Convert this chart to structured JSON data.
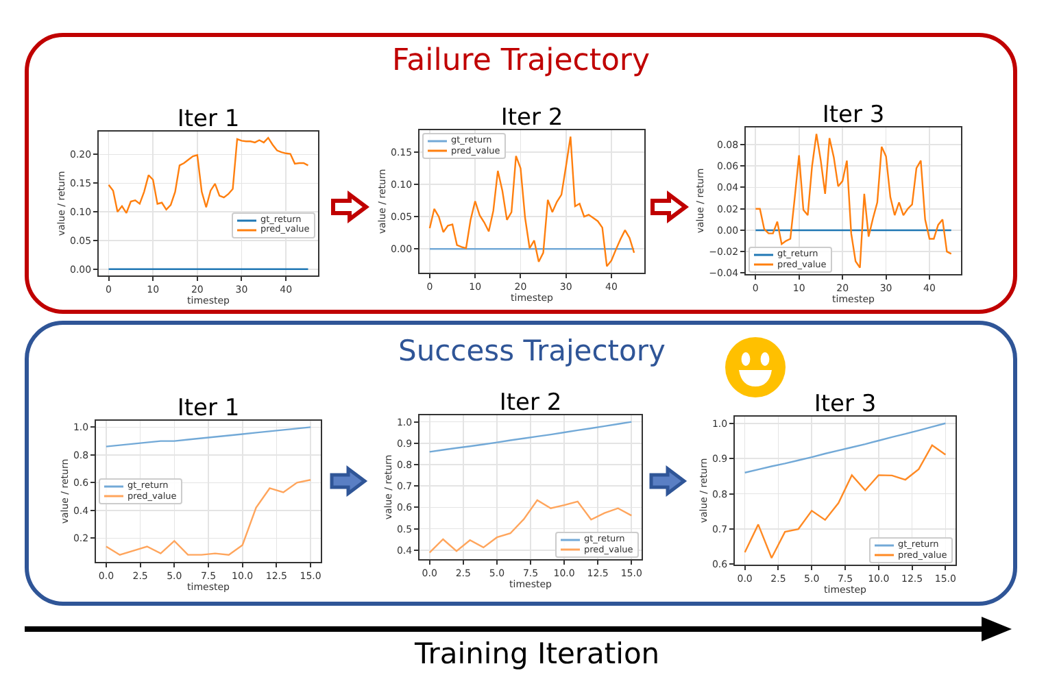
{
  "chart_data": [
    {
      "type": "line",
      "title": "Iter 1",
      "xlabel": "timestep",
      "ylabel": "value / return",
      "x": [
        0,
        1,
        2,
        3,
        4,
        5,
        6,
        7,
        8,
        9,
        10,
        11,
        12,
        13,
        14,
        15,
        16,
        17,
        18,
        19,
        20,
        21,
        22,
        23,
        24,
        25,
        26,
        27,
        28,
        29,
        30,
        31,
        32,
        33,
        34,
        35,
        36,
        37,
        38,
        39,
        40,
        41,
        42,
        43,
        44,
        45
      ],
      "series": [
        {
          "name": "gt_return",
          "color": "#1f77b4",
          "values": [
            0,
            0,
            0,
            0,
            0,
            0,
            0,
            0,
            0,
            0,
            0,
            0,
            0,
            0,
            0,
            0,
            0,
            0,
            0,
            0,
            0,
            0,
            0,
            0,
            0,
            0,
            0,
            0,
            0,
            0,
            0,
            0,
            0,
            0,
            0,
            0,
            0,
            0,
            0,
            0,
            0,
            0,
            0,
            0,
            0,
            0
          ]
        },
        {
          "name": "pred_value",
          "color": "#ff7f0e",
          "values": [
            0.147,
            0.137,
            0.1,
            0.11,
            0.098,
            0.118,
            0.12,
            0.114,
            0.135,
            0.164,
            0.156,
            0.114,
            0.116,
            0.104,
            0.112,
            0.135,
            0.181,
            0.185,
            0.191,
            0.197,
            0.199,
            0.135,
            0.108,
            0.137,
            0.149,
            0.128,
            0.125,
            0.131,
            0.14,
            0.227,
            0.224,
            0.223,
            0.223,
            0.221,
            0.225,
            0.221,
            0.229,
            0.217,
            0.207,
            0.204,
            0.202,
            0.201,
            0.184,
            0.185,
            0.185,
            0.181
          ]
        }
      ],
      "xlim": [
        -2.25,
        47.25
      ],
      "xticks": [
        0,
        10,
        20,
        30,
        40
      ],
      "ylim": [
        -0.011,
        0.24
      ],
      "yticks": [
        {
          "value": 0,
          "label": "0.00"
        },
        0.05,
        {
          "value": 0.1,
          "label": "0.10"
        },
        0.15,
        {
          "value": 0.2,
          "label": "0.20"
        }
      ],
      "grid": true,
      "legend": "right",
      "annotations": [
        "Failure Trajectory"
      ]
    },
    {
      "type": "line",
      "title": "Iter 2",
      "xlabel": "timestep",
      "ylabel": "value / return",
      "x": [
        0,
        1,
        2,
        3,
        4,
        5,
        6,
        7,
        8,
        9,
        10,
        11,
        12,
        13,
        14,
        15,
        16,
        17,
        18,
        19,
        20,
        21,
        22,
        23,
        24,
        25,
        26,
        27,
        28,
        29,
        30,
        31,
        32,
        33,
        34,
        35,
        36,
        37,
        38,
        39,
        40,
        41,
        42,
        43,
        44,
        45
      ],
      "series": [
        {
          "name": "gt_return",
          "color": "#72a9d7",
          "values": [
            0,
            0,
            0,
            0,
            0,
            0,
            0,
            0,
            0,
            0,
            0,
            0,
            0,
            0,
            0,
            0,
            0,
            0,
            0,
            0,
            0,
            0,
            0,
            0,
            0,
            0,
            0,
            0,
            0,
            0,
            0,
            0,
            0,
            0,
            0,
            0,
            0,
            0,
            0,
            0,
            0,
            0,
            0,
            0,
            0,
            0
          ]
        },
        {
          "name": "pred_value",
          "color": "#ff7f0e",
          "values": [
            0.032,
            0.062,
            0.05,
            0.026,
            0.036,
            0.038,
            0.006,
            0.003,
            0.001,
            0.045,
            0.074,
            0.052,
            0.041,
            0.027,
            0.059,
            0.121,
            0.09,
            0.045,
            0.057,
            0.144,
            0.125,
            0.048,
            0.001,
            0.013,
            -0.02,
            -0.006,
            0.076,
            0.057,
            0.073,
            0.084,
            0.128,
            0.174,
            0.066,
            0.07,
            0.05,
            0.053,
            0.048,
            0.043,
            0.033,
            -0.027,
            -0.018,
            -0.001,
            0.015,
            0.029,
            0.017,
            -0.006
          ]
        }
      ],
      "xlim": [
        -2.25,
        47.25
      ],
      "xticks": [
        0,
        10,
        20,
        30,
        40
      ],
      "ylim": [
        -0.037,
        0.184
      ],
      "yticks": [
        {
          "value": 0,
          "label": "0.00"
        },
        0.05,
        {
          "value": 0.1,
          "label": "0.10"
        },
        0.15
      ],
      "grid": true,
      "legend": "top left"
    },
    {
      "type": "line",
      "title": "Iter 3",
      "xlabel": "timestep",
      "ylabel": "value / return",
      "x": [
        0,
        1,
        2,
        3,
        4,
        5,
        6,
        7,
        8,
        9,
        10,
        11,
        12,
        13,
        14,
        15,
        16,
        17,
        18,
        19,
        20,
        21,
        22,
        23,
        24,
        25,
        26,
        27,
        28,
        29,
        30,
        31,
        32,
        33,
        34,
        35,
        36,
        37,
        38,
        39,
        40,
        41,
        42,
        43,
        44,
        45
      ],
      "series": [
        {
          "name": "gt_return",
          "color": "#1f77b4",
          "values": [
            0,
            0,
            0,
            0,
            0,
            0,
            0,
            0,
            0,
            0,
            0,
            0,
            0,
            0,
            0,
            0,
            0,
            0,
            0,
            0,
            0,
            0,
            0,
            0,
            0,
            0,
            0,
            0,
            0,
            0,
            0,
            0,
            0,
            0,
            0,
            0,
            0,
            0,
            0,
            0,
            0,
            0,
            0,
            0,
            0,
            0
          ]
        },
        {
          "name": "pred_value",
          "color": "#ff7f0e",
          "values": [
            0.02,
            0.02,
            0.001,
            -0.003,
            -0.003,
            0.008,
            -0.013,
            -0.01,
            -0.008,
            0.03,
            0.07,
            0.019,
            0.014,
            0.06,
            0.09,
            0.065,
            0.034,
            0.086,
            0.068,
            0.041,
            0.046,
            0.065,
            -0.003,
            -0.029,
            -0.035,
            0.034,
            -0.006,
            0.011,
            0.026,
            0.078,
            0.069,
            0.031,
            0.014,
            0.026,
            0.014,
            0.02,
            0.024,
            0.058,
            0.065,
            0.01,
            -0.008,
            -0.008,
            0.005,
            0.01,
            -0.02,
            -0.022
          ]
        }
      ],
      "xlim": [
        -2.25,
        47.25
      ],
      "xticks": [
        0,
        10,
        20,
        30,
        40
      ],
      "ylim": [
        -0.041,
        0.096
      ],
      "yticks": [
        {
          "value": -0.04,
          "label": "−0.04"
        },
        {
          "value": -0.02,
          "label": "−0.02"
        },
        {
          "value": 0,
          "label": "0.00"
        },
        0.02,
        0.04,
        0.06,
        0.08
      ],
      "grid": true,
      "legend": "bottom left"
    },
    {
      "type": "line",
      "title": "Iter 1",
      "xlabel": "timestep",
      "ylabel": "value / return",
      "x": [
        0,
        1,
        2,
        3,
        4,
        5,
        6,
        7,
        8,
        9,
        10,
        11,
        12,
        13,
        14,
        15
      ],
      "series": [
        {
          "name": "gt_return",
          "color": "#72a9d7",
          "values": [
            0.86,
            0.87,
            0.88,
            0.89,
            0.9,
            0.9,
            0.91,
            0.92,
            0.93,
            0.94,
            0.95,
            0.96,
            0.97,
            0.98,
            0.99,
            1.0
          ]
        },
        {
          "name": "pred_value",
          "color": "#ffa55c",
          "values": [
            0.14,
            0.08,
            0.11,
            0.14,
            0.09,
            0.18,
            0.08,
            0.08,
            0.09,
            0.08,
            0.15,
            0.42,
            0.56,
            0.53,
            0.6,
            0.62
          ]
        }
      ],
      "xlim": [
        -0.75,
        15.75
      ],
      "xticks": [
        {
          "value": 0,
          "label": "0.0"
        },
        2.5,
        {
          "value": 5,
          "label": "5.0"
        },
        7.5,
        {
          "value": 10,
          "label": "10.0"
        },
        12.5,
        {
          "value": 15,
          "label": "15.0"
        }
      ],
      "ylim": [
        0.029,
        1.046
      ],
      "yticks": [
        0.2,
        0.4,
        0.6,
        0.8,
        {
          "value": 1,
          "label": "1.0"
        }
      ],
      "grid": true,
      "legend": "left",
      "annotations": [
        "Success Trajectory"
      ]
    },
    {
      "type": "line",
      "title": "Iter 2",
      "xlabel": "timestep",
      "ylabel": "value / return",
      "x": [
        0,
        1,
        2,
        3,
        4,
        5,
        6,
        7,
        8,
        9,
        10,
        11,
        12,
        13,
        14,
        15
      ],
      "series": [
        {
          "name": "gt_return",
          "color": "#72a9d7",
          "values": [
            0.86,
            0.869,
            0.878,
            0.886,
            0.895,
            0.904,
            0.914,
            0.923,
            0.932,
            0.941,
            0.951,
            0.961,
            0.97,
            0.98,
            0.99,
            1.0
          ]
        },
        {
          "name": "pred_value",
          "color": "#ffa55c",
          "values": [
            0.389,
            0.451,
            0.396,
            0.447,
            0.413,
            0.46,
            0.479,
            0.545,
            0.634,
            0.596,
            0.611,
            0.628,
            0.543,
            0.574,
            0.596,
            0.562
          ]
        }
      ],
      "xlim": [
        -0.75,
        15.75
      ],
      "xticks": [
        {
          "value": 0,
          "label": "0.0"
        },
        2.5,
        {
          "value": 5,
          "label": "5.0"
        },
        7.5,
        {
          "value": 10,
          "label": "10.0"
        },
        12.5,
        {
          "value": 15,
          "label": "15.0"
        }
      ],
      "ylim": [
        0.358,
        1.031
      ],
      "yticks": [
        0.4,
        0.5,
        0.6,
        0.7,
        0.8,
        0.9,
        {
          "value": 1,
          "label": "1.0"
        }
      ],
      "grid": true,
      "legend": "bottom right"
    },
    {
      "type": "line",
      "title": "Iter 3",
      "xlabel": "timestep",
      "ylabel": "value / return",
      "x": [
        0,
        1,
        2,
        3,
        4,
        5,
        6,
        7,
        8,
        9,
        10,
        11,
        12,
        13,
        14,
        15
      ],
      "series": [
        {
          "name": "gt_return",
          "color": "#72a9d7",
          "values": [
            0.86,
            0.869,
            0.878,
            0.886,
            0.895,
            0.904,
            0.914,
            0.923,
            0.932,
            0.941,
            0.951,
            0.961,
            0.97,
            0.98,
            0.99,
            1.0
          ]
        },
        {
          "name": "pred_value",
          "color": "#ff8a24",
          "values": [
            0.634,
            0.713,
            0.618,
            0.692,
            0.7,
            0.752,
            0.726,
            0.774,
            0.853,
            0.81,
            0.853,
            0.852,
            0.84,
            0.87,
            0.938,
            0.911
          ]
        }
      ],
      "xlim": [
        -0.75,
        15.75
      ],
      "xticks": [
        {
          "value": 0,
          "label": "0.0"
        },
        2.5,
        {
          "value": 5,
          "label": "5.0"
        },
        7.5,
        {
          "value": 10,
          "label": "10.0"
        },
        12.5,
        {
          "value": 15,
          "label": "15.0"
        }
      ],
      "ylim": [
        0.599,
        1.019
      ],
      "yticks": [
        0.6,
        0.7,
        0.8,
        0.9,
        {
          "value": 1,
          "label": "1.0"
        }
      ],
      "grid": true,
      "legend": "bottom right",
      "annotations": [
        "Training Iteration"
      ]
    }
  ]
}
